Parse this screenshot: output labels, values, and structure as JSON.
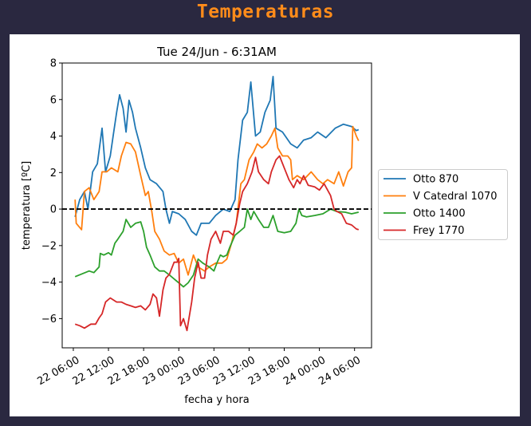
{
  "app": {
    "title": "Temperaturas"
  },
  "chart_data": {
    "type": "line",
    "title": "Tue 24/Jun - 6:31AM",
    "xlabel": "fecha y hora",
    "ylabel": "temperatura [ºC]",
    "x_units": "hours since 22 06:00",
    "xlim": [
      -1.9,
      50.9
    ],
    "ylim": [
      -7.6,
      8
    ],
    "xticks": [
      0,
      6,
      12,
      18,
      24,
      30,
      36,
      42,
      48
    ],
    "xtick_labels": [
      "22 06:00",
      "22 12:00",
      "22 18:00",
      "23 00:00",
      "23 06:00",
      "23 12:00",
      "23 18:00",
      "24 00:00",
      "24 06:00"
    ],
    "yticks": [
      -6,
      -4,
      -2,
      0,
      2,
      4,
      6,
      8
    ],
    "ytick_labels": [
      "−6",
      "−4",
      "−2",
      "0",
      "2",
      "4",
      "6",
      "8"
    ],
    "reference_line": {
      "y": 0,
      "style": "dashed",
      "color": "#000000"
    },
    "grid": false,
    "legend_placement": "right-outside",
    "series": [
      {
        "name": "Otto 870",
        "color": "#1f77b4",
        "points": [
          [
            0.3,
            -0.43
          ],
          [
            1.1,
            0.52
          ],
          [
            1.9,
            0.96
          ],
          [
            2.5,
            0
          ],
          [
            3.3,
            2.04
          ],
          [
            4.1,
            2.48
          ],
          [
            4.9,
            4.43
          ],
          [
            5.5,
            2.04
          ],
          [
            6.3,
            2.91
          ],
          [
            6.8,
            4.0
          ],
          [
            7.4,
            5.3
          ],
          [
            7.9,
            6.26
          ],
          [
            8.5,
            5.52
          ],
          [
            9.0,
            4.22
          ],
          [
            9.5,
            5.96
          ],
          [
            10.1,
            5.3
          ],
          [
            10.6,
            4.43
          ],
          [
            11.5,
            3.35
          ],
          [
            12.3,
            2.26
          ],
          [
            13.1,
            1.61
          ],
          [
            14.2,
            1.39
          ],
          [
            15.3,
            0.96
          ],
          [
            15.8,
            0
          ],
          [
            16.4,
            -0.78
          ],
          [
            16.9,
            -0.13
          ],
          [
            18.0,
            -0.26
          ],
          [
            19.1,
            -0.57
          ],
          [
            20.2,
            -1.22
          ],
          [
            21.0,
            -1.43
          ],
          [
            21.8,
            -0.78
          ],
          [
            23.2,
            -0.78
          ],
          [
            24.3,
            -0.35
          ],
          [
            25.6,
            0
          ],
          [
            26.7,
            -0.13
          ],
          [
            27.6,
            0.52
          ],
          [
            28.1,
            2.7
          ],
          [
            28.9,
            4.87
          ],
          [
            29.7,
            5.3
          ],
          [
            30.3,
            6.96
          ],
          [
            31.1,
            4.0
          ],
          [
            31.9,
            4.22
          ],
          [
            32.7,
            5.3
          ],
          [
            33.6,
            5.96
          ],
          [
            34.1,
            7.26
          ],
          [
            34.6,
            4.43
          ],
          [
            35.7,
            4.22
          ],
          [
            37.1,
            3.57
          ],
          [
            38.2,
            3.35
          ],
          [
            39.3,
            3.78
          ],
          [
            40.6,
            3.91
          ],
          [
            41.7,
            4.22
          ],
          [
            43.1,
            3.91
          ],
          [
            44.7,
            4.43
          ],
          [
            46.1,
            4.65
          ],
          [
            47.5,
            4.52
          ],
          [
            48.3,
            4.3
          ],
          [
            48.7,
            4.35
          ]
        ]
      },
      {
        "name": "V Catedral 1070",
        "color": "#ff7f0e",
        "points": [
          [
            0.3,
            0.52
          ],
          [
            0.5,
            -0.78
          ],
          [
            1.4,
            -1.13
          ],
          [
            1.9,
            0.96
          ],
          [
            2.7,
            1.17
          ],
          [
            3.5,
            0.52
          ],
          [
            4.4,
            0.96
          ],
          [
            4.9,
            2.04
          ],
          [
            5.7,
            2.04
          ],
          [
            6.5,
            2.26
          ],
          [
            7.6,
            2.04
          ],
          [
            8.2,
            2.91
          ],
          [
            9.0,
            3.65
          ],
          [
            9.8,
            3.57
          ],
          [
            10.6,
            3.13
          ],
          [
            11.5,
            1.83
          ],
          [
            12.3,
            0.74
          ],
          [
            12.8,
            0.96
          ],
          [
            13.4,
            -0.13
          ],
          [
            13.9,
            -1.22
          ],
          [
            14.7,
            -1.65
          ],
          [
            15.5,
            -2.3
          ],
          [
            16.4,
            -2.52
          ],
          [
            17.2,
            -2.43
          ],
          [
            18.0,
            -2.96
          ],
          [
            18.8,
            -2.74
          ],
          [
            19.6,
            -3.61
          ],
          [
            20.5,
            -2.52
          ],
          [
            21.3,
            -3.17
          ],
          [
            22.4,
            -3.39
          ],
          [
            23.2,
            -3.17
          ],
          [
            24.3,
            -2.96
          ],
          [
            25.4,
            -2.96
          ],
          [
            26.2,
            -2.74
          ],
          [
            27.0,
            -1.87
          ],
          [
            27.8,
            -0.78
          ],
          [
            28.6,
            1.39
          ],
          [
            29.2,
            1.61
          ],
          [
            30.0,
            2.7
          ],
          [
            30.8,
            3.13
          ],
          [
            31.4,
            3.57
          ],
          [
            32.2,
            3.35
          ],
          [
            33.0,
            3.57
          ],
          [
            33.8,
            4.0
          ],
          [
            34.4,
            4.43
          ],
          [
            34.9,
            3.35
          ],
          [
            35.7,
            2.91
          ],
          [
            36.6,
            2.91
          ],
          [
            37.1,
            2.7
          ],
          [
            37.4,
            1.61
          ],
          [
            38.2,
            1.83
          ],
          [
            39.3,
            1.61
          ],
          [
            40.6,
            2.04
          ],
          [
            41.7,
            1.61
          ],
          [
            42.6,
            1.39
          ],
          [
            43.4,
            1.61
          ],
          [
            44.5,
            1.39
          ],
          [
            45.3,
            2.04
          ],
          [
            46.1,
            1.26
          ],
          [
            46.9,
            2.04
          ],
          [
            47.5,
            2.26
          ],
          [
            47.7,
            4.52
          ],
          [
            48.3,
            4.0
          ],
          [
            48.7,
            3.74
          ]
        ]
      },
      {
        "name": "Otto 1400",
        "color": "#2ca02c",
        "points": [
          [
            0.3,
            -3.7
          ],
          [
            2.7,
            -3.39
          ],
          [
            3.5,
            -3.48
          ],
          [
            4.4,
            -3.17
          ],
          [
            4.6,
            -2.43
          ],
          [
            5.2,
            -2.52
          ],
          [
            6.0,
            -2.39
          ],
          [
            6.5,
            -2.52
          ],
          [
            7.1,
            -1.87
          ],
          [
            7.6,
            -1.65
          ],
          [
            8.5,
            -1.22
          ],
          [
            9.0,
            -0.57
          ],
          [
            9.8,
            -1.0
          ],
          [
            10.6,
            -0.78
          ],
          [
            11.5,
            -0.7
          ],
          [
            12.0,
            -1.22
          ],
          [
            12.5,
            -2.09
          ],
          [
            13.1,
            -2.52
          ],
          [
            13.9,
            -3.17
          ],
          [
            14.7,
            -3.39
          ],
          [
            15.5,
            -3.39
          ],
          [
            16.4,
            -3.61
          ],
          [
            17.2,
            -3.83
          ],
          [
            18.0,
            -4.04
          ],
          [
            18.8,
            -4.26
          ],
          [
            19.6,
            -4.04
          ],
          [
            20.5,
            -3.61
          ],
          [
            21.3,
            -2.74
          ],
          [
            22.1,
            -2.96
          ],
          [
            23.2,
            -3.17
          ],
          [
            24.0,
            -3.39
          ],
          [
            24.5,
            -2.96
          ],
          [
            25.1,
            -2.52
          ],
          [
            25.6,
            -2.61
          ],
          [
            26.2,
            -2.52
          ],
          [
            26.7,
            -2.09
          ],
          [
            27.6,
            -1.43
          ],
          [
            28.4,
            -1.22
          ],
          [
            29.2,
            -1.0
          ],
          [
            29.7,
            0
          ],
          [
            30.3,
            -0.57
          ],
          [
            30.8,
            -0.13
          ],
          [
            31.6,
            -0.57
          ],
          [
            32.5,
            -1.0
          ],
          [
            33.3,
            -1.0
          ],
          [
            34.1,
            -0.35
          ],
          [
            34.9,
            -1.22
          ],
          [
            36.0,
            -1.3
          ],
          [
            37.1,
            -1.22
          ],
          [
            38.0,
            -0.78
          ],
          [
            38.5,
            0
          ],
          [
            39.0,
            -0.35
          ],
          [
            39.8,
            -0.43
          ],
          [
            41.2,
            -0.35
          ],
          [
            42.6,
            -0.26
          ],
          [
            43.9,
            0
          ],
          [
            45.0,
            -0.13
          ],
          [
            46.4,
            -0.17
          ],
          [
            47.5,
            -0.26
          ],
          [
            48.7,
            -0.17
          ]
        ]
      },
      {
        "name": "Frey 1770",
        "color": "#d62728",
        "points": [
          [
            0.3,
            -6.3
          ],
          [
            1.1,
            -6.39
          ],
          [
            1.9,
            -6.52
          ],
          [
            3.0,
            -6.3
          ],
          [
            3.8,
            -6.3
          ],
          [
            4.4,
            -5.96
          ],
          [
            4.9,
            -5.74
          ],
          [
            5.5,
            -5.09
          ],
          [
            6.3,
            -4.87
          ],
          [
            7.4,
            -5.09
          ],
          [
            8.2,
            -5.09
          ],
          [
            9.0,
            -5.22
          ],
          [
            9.8,
            -5.3
          ],
          [
            10.6,
            -5.39
          ],
          [
            11.5,
            -5.3
          ],
          [
            12.3,
            -5.52
          ],
          [
            13.1,
            -5.22
          ],
          [
            13.6,
            -4.65
          ],
          [
            14.2,
            -4.87
          ],
          [
            14.7,
            -5.87
          ],
          [
            15.3,
            -4.43
          ],
          [
            15.8,
            -3.78
          ],
          [
            16.4,
            -3.57
          ],
          [
            17.2,
            -2.91
          ],
          [
            17.7,
            -2.91
          ],
          [
            18.0,
            -2.7
          ],
          [
            18.3,
            -6.39
          ],
          [
            18.8,
            -6.0
          ],
          [
            19.4,
            -6.65
          ],
          [
            20.2,
            -5.09
          ],
          [
            20.7,
            -3.78
          ],
          [
            21.3,
            -2.91
          ],
          [
            21.8,
            -3.78
          ],
          [
            22.4,
            -3.78
          ],
          [
            22.9,
            -2.52
          ],
          [
            23.5,
            -1.65
          ],
          [
            24.3,
            -1.22
          ],
          [
            25.1,
            -1.87
          ],
          [
            25.6,
            -1.22
          ],
          [
            26.5,
            -1.22
          ],
          [
            27.3,
            -1.43
          ],
          [
            27.8,
            -0.78
          ],
          [
            28.4,
            0.3
          ],
          [
            28.9,
            0.96
          ],
          [
            29.7,
            1.39
          ],
          [
            30.5,
            2.04
          ],
          [
            31.1,
            2.83
          ],
          [
            31.6,
            2.04
          ],
          [
            32.5,
            1.61
          ],
          [
            33.3,
            1.39
          ],
          [
            33.8,
            2.04
          ],
          [
            34.6,
            2.7
          ],
          [
            35.2,
            2.91
          ],
          [
            36.0,
            2.26
          ],
          [
            36.8,
            1.61
          ],
          [
            37.6,
            1.17
          ],
          [
            38.2,
            1.61
          ],
          [
            38.7,
            1.39
          ],
          [
            39.3,
            1.83
          ],
          [
            40.1,
            1.3
          ],
          [
            41.2,
            1.22
          ],
          [
            42.0,
            1.04
          ],
          [
            42.8,
            1.39
          ],
          [
            43.9,
            0.74
          ],
          [
            44.5,
            0
          ],
          [
            45.0,
            -0.13
          ],
          [
            45.8,
            -0.26
          ],
          [
            46.6,
            -0.78
          ],
          [
            47.5,
            -0.87
          ],
          [
            48.3,
            -1.09
          ],
          [
            48.7,
            -1.13
          ]
        ]
      }
    ]
  }
}
